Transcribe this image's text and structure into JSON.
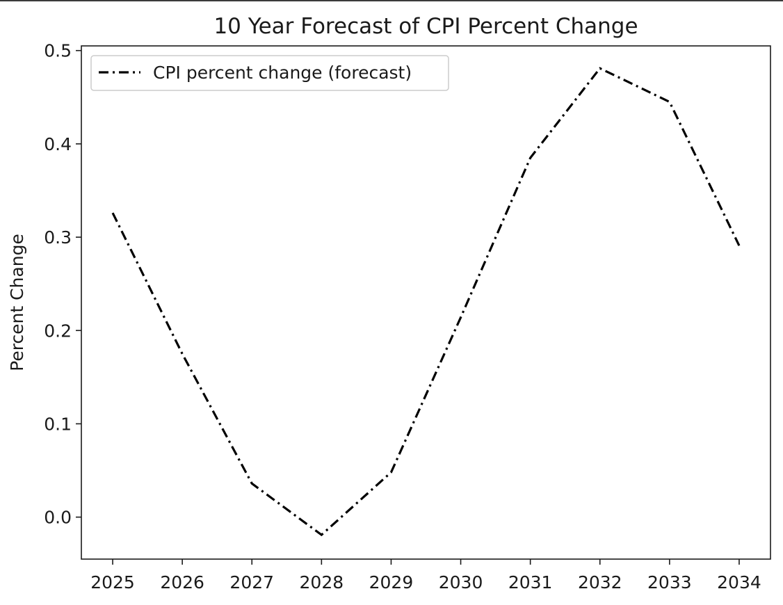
{
  "chart_data": {
    "type": "line",
    "title": "10 Year Forecast of CPI Percent Change",
    "xlabel": "",
    "ylabel": "Percent Change",
    "x": [
      2025,
      2026,
      2027,
      2028,
      2029,
      2030,
      2031,
      2032,
      2033,
      2034
    ],
    "x_tick_labels": [
      "2025",
      "2026",
      "2027",
      "2028",
      "2029",
      "2030",
      "2031",
      "2032",
      "2033",
      "2034"
    ],
    "y_tick_labels": [
      "0.0",
      "0.1",
      "0.2",
      "0.3",
      "0.4",
      "0.5"
    ],
    "y_ticks": [
      0.0,
      0.1,
      0.2,
      0.3,
      0.4,
      0.5
    ],
    "xlim": [
      2024.55,
      2034.45
    ],
    "ylim": [
      -0.045,
      0.505
    ],
    "grid": false,
    "legend_location": "upper left",
    "series": [
      {
        "name": "CPI percent change (forecast)",
        "line_style": "dash-dot",
        "color": "#000000",
        "values": [
          0.326,
          0.175,
          0.036,
          -0.019,
          0.048,
          0.214,
          0.385,
          0.481,
          0.445,
          0.291
        ]
      }
    ]
  }
}
